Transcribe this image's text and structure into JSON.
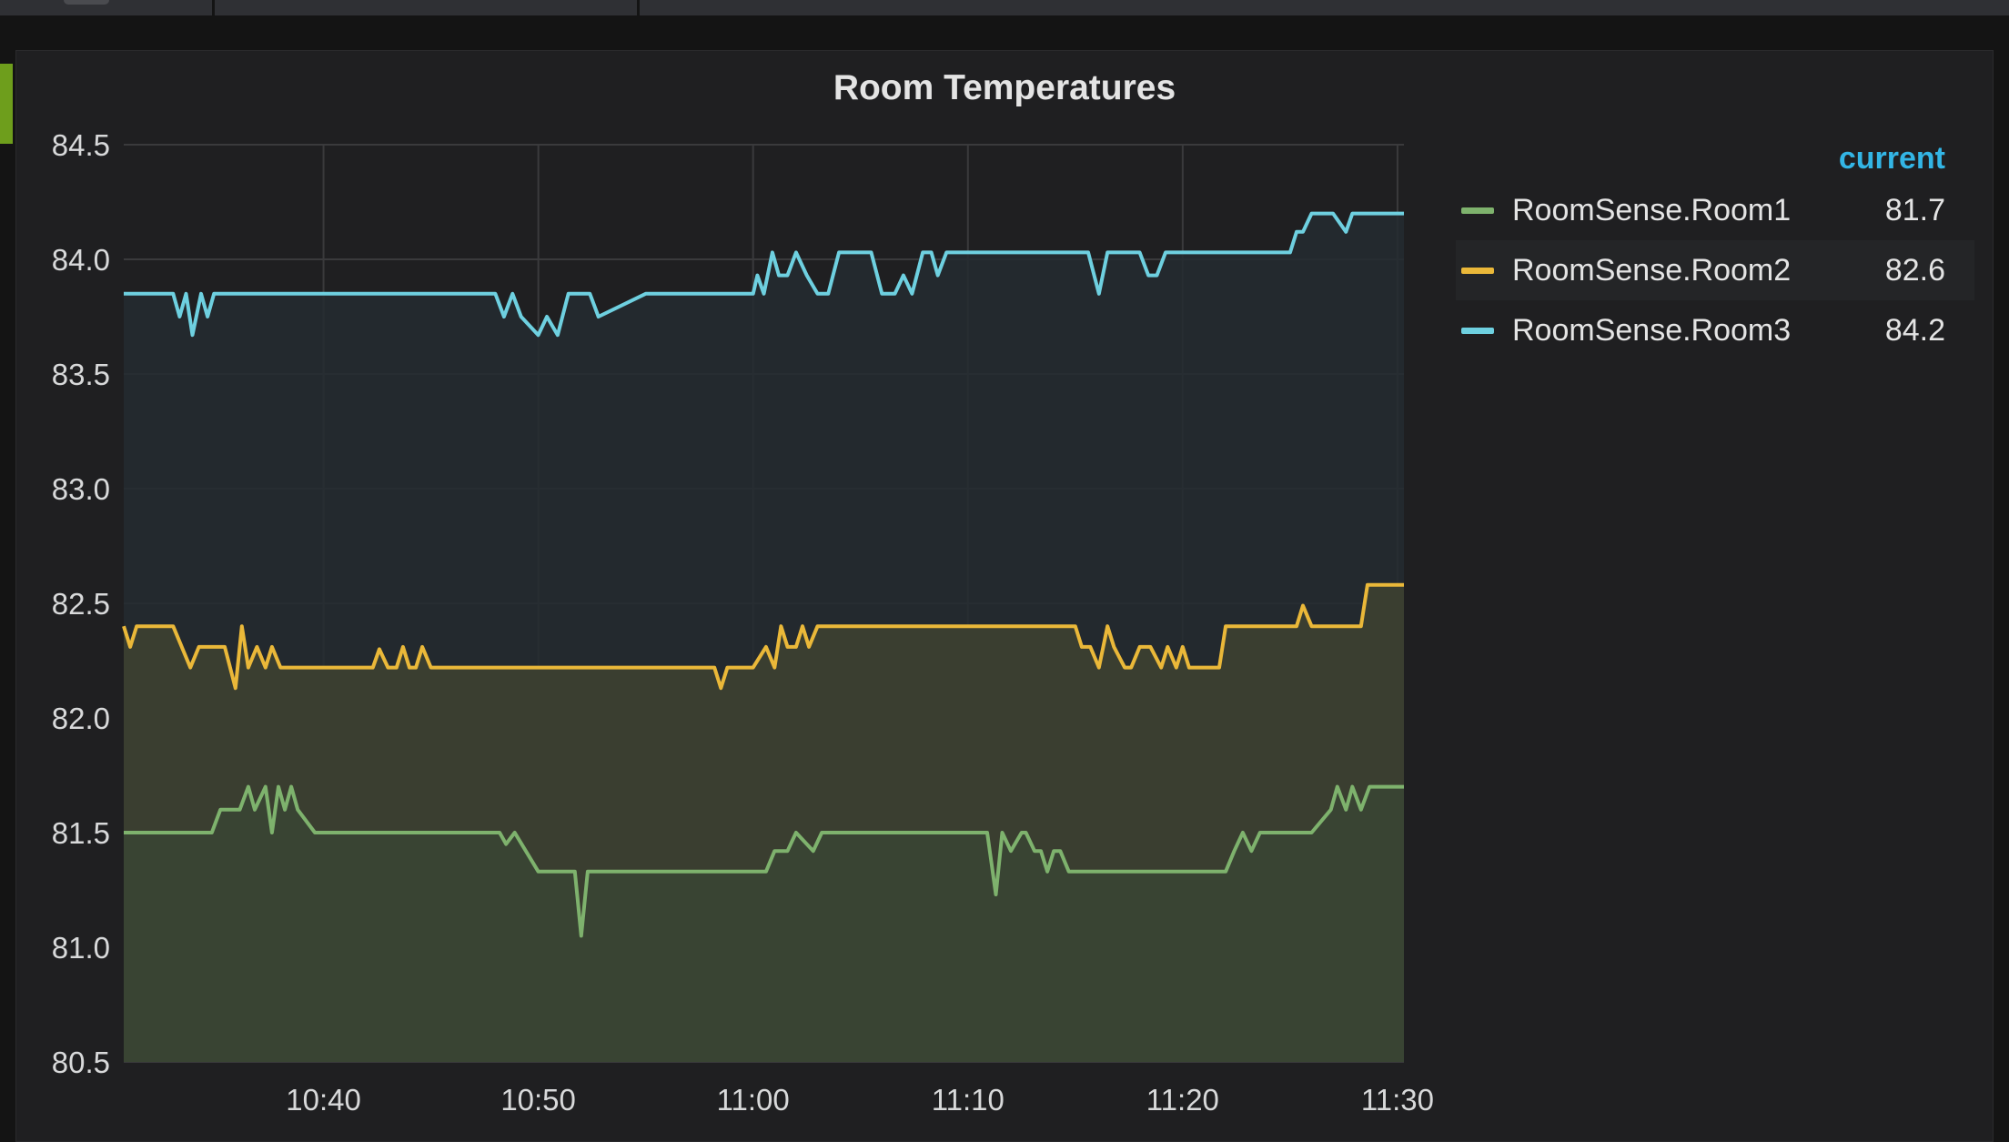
{
  "panel": {
    "title": "Room Temperatures"
  },
  "legend": {
    "header": "current",
    "items": [
      {
        "name": "RoomSense.Room1",
        "value": "81.7",
        "color": "#7eb26d"
      },
      {
        "name": "RoomSense.Room2",
        "value": "82.6",
        "color": "#eab839"
      },
      {
        "name": "RoomSense.Room3",
        "value": "84.2",
        "color": "#6ed0e0"
      }
    ]
  },
  "colors": {
    "accent": "#33b5e5",
    "indicator": "#6e9e1c",
    "background": "#1f1f21"
  },
  "chart_data": {
    "type": "line",
    "title": "Room Temperatures",
    "xlabel": "",
    "ylabel": "",
    "ylim": [
      80.5,
      84.5
    ],
    "yticks": [
      "84.5",
      "84.0",
      "83.5",
      "83.0",
      "82.5",
      "82.0",
      "81.5",
      "81.0",
      "80.5"
    ],
    "xticks": [
      "10:40",
      "10:50",
      "11:00",
      "11:10",
      "11:20",
      "11:30"
    ],
    "xtick_minutes": [
      40,
      50,
      60,
      70,
      80,
      90
    ],
    "xlim_minutes": [
      30.7,
      90.3
    ],
    "grid": true,
    "legend_position": "right",
    "series": [
      {
        "name": "RoomSense.Room1",
        "color": "#7eb26d",
        "fill": "#3a4534",
        "x": [
          30.7,
          34.8,
          35.2,
          36.1,
          36.5,
          36.8,
          37.3,
          37.6,
          37.9,
          38.2,
          38.5,
          38.8,
          39.6,
          40,
          45,
          48,
          48.2,
          48.5,
          48.9,
          50,
          51.7,
          52,
          52.3,
          53,
          58,
          60.6,
          61,
          61.6,
          62,
          62.8,
          63.2,
          63.6,
          64,
          66,
          68,
          70,
          70.9,
          71.3,
          71.6,
          72,
          72.5,
          72.7,
          73.1,
          73.4,
          73.7,
          74,
          74.3,
          74.7,
          75,
          76,
          78,
          80,
          82,
          82.4,
          82.8,
          83.2,
          83.6,
          84,
          86,
          86.9,
          87.2,
          87.6,
          87.9,
          88.3,
          88.7,
          89.1,
          89.5,
          90.3
        ],
        "y": [
          81.5,
          81.5,
          81.6,
          81.6,
          81.7,
          81.6,
          81.7,
          81.5,
          81.7,
          81.6,
          81.7,
          81.6,
          81.5,
          81.5,
          81.5,
          81.5,
          81.5,
          81.45,
          81.5,
          81.33,
          81.33,
          81.05,
          81.33,
          81.33,
          81.33,
          81.33,
          81.42,
          81.42,
          81.5,
          81.42,
          81.5,
          81.5,
          81.5,
          81.5,
          81.5,
          81.5,
          81.5,
          81.23,
          81.5,
          81.42,
          81.5,
          81.5,
          81.42,
          81.42,
          81.33,
          81.42,
          81.42,
          81.33,
          81.33,
          81.33,
          81.33,
          81.33,
          81.33,
          81.42,
          81.5,
          81.42,
          81.5,
          81.5,
          81.5,
          81.6,
          81.7,
          81.6,
          81.7,
          81.6,
          81.7,
          81.7,
          81.7,
          81.7
        ]
      },
      {
        "name": "RoomSense.Room2",
        "color": "#eab839",
        "fill": "#3e4230",
        "x": [
          30.7,
          31,
          31.3,
          32,
          33,
          33.8,
          34.2,
          34.6,
          35.4,
          35.9,
          36.2,
          36.5,
          36.9,
          37.3,
          37.6,
          38,
          40,
          42,
          42.3,
          42.6,
          43,
          43.4,
          43.7,
          44,
          44.3,
          44.6,
          45,
          50,
          55,
          58,
          58.2,
          58.5,
          58.8,
          59,
          60,
          60.6,
          61,
          61.3,
          61.6,
          62,
          62.3,
          62.6,
          63,
          65,
          70,
          75,
          75.3,
          75.7,
          76.1,
          76.5,
          76.8,
          77.3,
          77.6,
          78,
          78.5,
          79,
          79.3,
          79.7,
          80,
          80.3,
          80.6,
          81,
          81.7,
          82,
          84,
          85,
          85.3,
          85.6,
          86,
          86.6,
          87,
          88,
          88.3,
          88.6,
          89,
          90.3
        ],
        "y": [
          82.4,
          82.31,
          82.4,
          82.4,
          82.4,
          82.22,
          82.31,
          82.31,
          82.31,
          82.13,
          82.4,
          82.22,
          82.31,
          82.22,
          82.31,
          82.22,
          82.22,
          82.22,
          82.22,
          82.3,
          82.22,
          82.22,
          82.31,
          82.22,
          82.22,
          82.31,
          82.22,
          82.22,
          82.22,
          82.22,
          82.22,
          82.13,
          82.22,
          82.22,
          82.22,
          82.31,
          82.22,
          82.4,
          82.31,
          82.31,
          82.4,
          82.31,
          82.4,
          82.4,
          82.4,
          82.4,
          82.31,
          82.31,
          82.22,
          82.4,
          82.31,
          82.22,
          82.22,
          82.31,
          82.31,
          82.22,
          82.31,
          82.22,
          82.31,
          82.22,
          82.22,
          82.22,
          82.22,
          82.4,
          82.4,
          82.4,
          82.4,
          82.49,
          82.4,
          82.4,
          82.4,
          82.4,
          82.4,
          82.58,
          82.58,
          82.58
        ]
      },
      {
        "name": "RoomSense.Room3",
        "color": "#6ed0e0",
        "fill": "#252b30",
        "x": [
          30.7,
          32,
          33,
          33.3,
          33.6,
          33.9,
          34.3,
          34.6,
          34.9,
          35.2,
          35.5,
          36,
          40,
          45,
          48,
          48.4,
          48.8,
          49.2,
          50,
          50.4,
          50.9,
          51.4,
          51.7,
          52,
          52.4,
          52.8,
          55,
          55.4,
          55.8,
          56.2,
          57,
          60,
          60.2,
          60.5,
          60.9,
          61.2,
          61.6,
          62,
          62.5,
          63,
          63.5,
          64,
          65,
          65.5,
          66,
          66.6,
          67,
          67.4,
          67.9,
          68.3,
          68.6,
          69,
          69.3,
          69.6,
          70,
          75,
          75.6,
          76.1,
          76.5,
          77,
          78,
          78.4,
          78.8,
          79.2,
          79.6,
          80,
          82,
          84,
          85,
          85.3,
          85.6,
          86,
          86,
          86.5,
          87,
          87.6,
          87.9,
          88.3,
          89,
          90.3
        ],
        "y": [
          83.85,
          83.85,
          83.85,
          83.75,
          83.85,
          83.67,
          83.85,
          83.75,
          83.85,
          83.85,
          83.85,
          83.85,
          83.85,
          83.85,
          83.85,
          83.75,
          83.85,
          83.75,
          83.67,
          83.75,
          83.67,
          83.85,
          83.85,
          83.85,
          83.85,
          83.75,
          83.85,
          83.85,
          83.85,
          83.85,
          83.85,
          83.85,
          83.93,
          83.85,
          84.03,
          83.93,
          83.93,
          84.03,
          83.93,
          83.85,
          83.85,
          84.03,
          84.03,
          84.03,
          83.85,
          83.85,
          83.93,
          83.85,
          84.03,
          84.03,
          83.93,
          84.03,
          84.03,
          84.03,
          84.03,
          84.03,
          84.03,
          83.85,
          84.03,
          84.03,
          84.03,
          83.93,
          83.93,
          84.03,
          84.03,
          84.03,
          84.03,
          84.03,
          84.03,
          84.12,
          84.12,
          84.2,
          84.2,
          84.2,
          84.2,
          84.12,
          84.2,
          84.2,
          84.2,
          84.2
        ]
      }
    ]
  }
}
